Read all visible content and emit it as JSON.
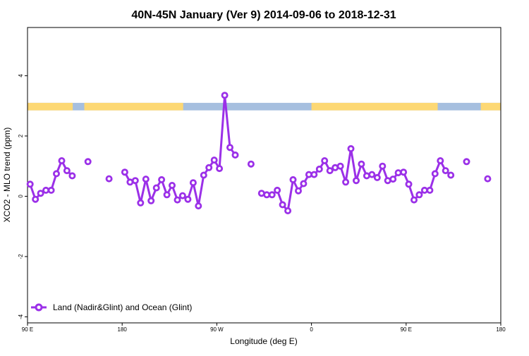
{
  "chart_data": {
    "type": "line",
    "title": "40N-45N January (Ver 9)   2014-09-06 to 2018-12-31",
    "xlabel": "Longitude (deg E)",
    "ylabel": "XCO2 - MLO trend (ppm)",
    "xlim": [
      90,
      540
    ],
    "ylim": [
      -4.2,
      5.6
    ],
    "x_ticks": [
      {
        "value": 90,
        "label": "90 E"
      },
      {
        "value": 180,
        "label": "180"
      },
      {
        "value": 270,
        "label": "90 W"
      },
      {
        "value": 360,
        "label": "0"
      },
      {
        "value": 450,
        "label": "90 E"
      },
      {
        "value": 540,
        "label": "180"
      }
    ],
    "y_ticks": [
      {
        "value": -4,
        "label": "-4"
      },
      {
        "value": -2,
        "label": "-2"
      },
      {
        "value": 0,
        "label": "0"
      },
      {
        "value": 2,
        "label": "2"
      },
      {
        "value": 4,
        "label": "4"
      }
    ],
    "grid": false,
    "legend": {
      "position": "bottom-left"
    },
    "series": [
      {
        "name": "Land (Nadir&Glint) and Ocean (Glint)",
        "color": "#9b30e8",
        "segments": [
          [
            [
              92.5,
              0.4
            ],
            [
              97.5,
              -0.1
            ],
            [
              102.5,
              0.1
            ],
            [
              107.5,
              0.2
            ],
            [
              112.5,
              0.2
            ],
            [
              117.5,
              0.75
            ],
            [
              122.5,
              1.18
            ],
            [
              127.5,
              0.85
            ],
            [
              132.5,
              0.68
            ]
          ],
          [
            [
              147.5,
              1.15
            ]
          ],
          [
            [
              167.5,
              0.58
            ]
          ],
          [
            [
              182.5,
              0.8
            ],
            [
              187.5,
              0.47
            ],
            [
              192.5,
              0.52
            ],
            [
              197.5,
              -0.22
            ],
            [
              202.5,
              0.57
            ],
            [
              207.5,
              -0.15
            ],
            [
              212.5,
              0.28
            ],
            [
              217.5,
              0.55
            ],
            [
              222.5,
              0.05
            ],
            [
              227.5,
              0.36
            ],
            [
              232.5,
              -0.12
            ],
            [
              237.5,
              0.02
            ],
            [
              242.5,
              -0.1
            ],
            [
              247.5,
              0.45
            ],
            [
              252.5,
              -0.32
            ],
            [
              257.5,
              0.7
            ],
            [
              262.5,
              0.95
            ],
            [
              267.5,
              1.2
            ],
            [
              272.5,
              0.92
            ],
            [
              277.5,
              3.35
            ],
            [
              282.5,
              1.62
            ],
            [
              287.5,
              1.37
            ]
          ],
          [
            [
              302.5,
              1.07
            ]
          ],
          [
            [
              312.5,
              0.1
            ],
            [
              317.5,
              0.05
            ],
            [
              322.5,
              0.05
            ],
            [
              327.5,
              0.2
            ],
            [
              332.5,
              -0.28
            ],
            [
              337.5,
              -0.48
            ],
            [
              342.5,
              0.55
            ],
            [
              347.5,
              0.18
            ],
            [
              352.5,
              0.42
            ],
            [
              357.5,
              0.72
            ],
            [
              362.5,
              0.72
            ],
            [
              367.5,
              0.9
            ],
            [
              372.5,
              1.18
            ],
            [
              377.5,
              0.85
            ],
            [
              382.5,
              0.95
            ],
            [
              387.5,
              1.0
            ],
            [
              392.5,
              0.47
            ],
            [
              397.5,
              1.58
            ],
            [
              402.5,
              0.52
            ],
            [
              407.5,
              1.07
            ],
            [
              412.5,
              0.68
            ],
            [
              417.5,
              0.72
            ],
            [
              422.5,
              0.62
            ],
            [
              427.5,
              1.0
            ],
            [
              432.5,
              0.52
            ],
            [
              437.5,
              0.57
            ],
            [
              442.5,
              0.78
            ],
            [
              447.5,
              0.8
            ],
            [
              452.5,
              0.4
            ],
            [
              457.5,
              -0.12
            ],
            [
              462.5,
              0.05
            ],
            [
              467.5,
              0.2
            ],
            [
              472.5,
              0.2
            ],
            [
              477.5,
              0.75
            ],
            [
              482.5,
              1.18
            ],
            [
              487.5,
              0.85
            ],
            [
              492.5,
              0.7
            ]
          ],
          [
            [
              507.5,
              1.15
            ]
          ],
          [
            [
              527.5,
              0.58
            ]
          ]
        ]
      }
    ],
    "surface_bar": {
      "y_range": [
        2.85,
        3.1
      ],
      "ocean_color": "#a6bfdf",
      "land_color": "#fdd874",
      "land_spans": [
        [
          90,
          133
        ],
        [
          144,
          238
        ],
        [
          360,
          480
        ],
        [
          521,
          540
        ]
      ]
    }
  }
}
